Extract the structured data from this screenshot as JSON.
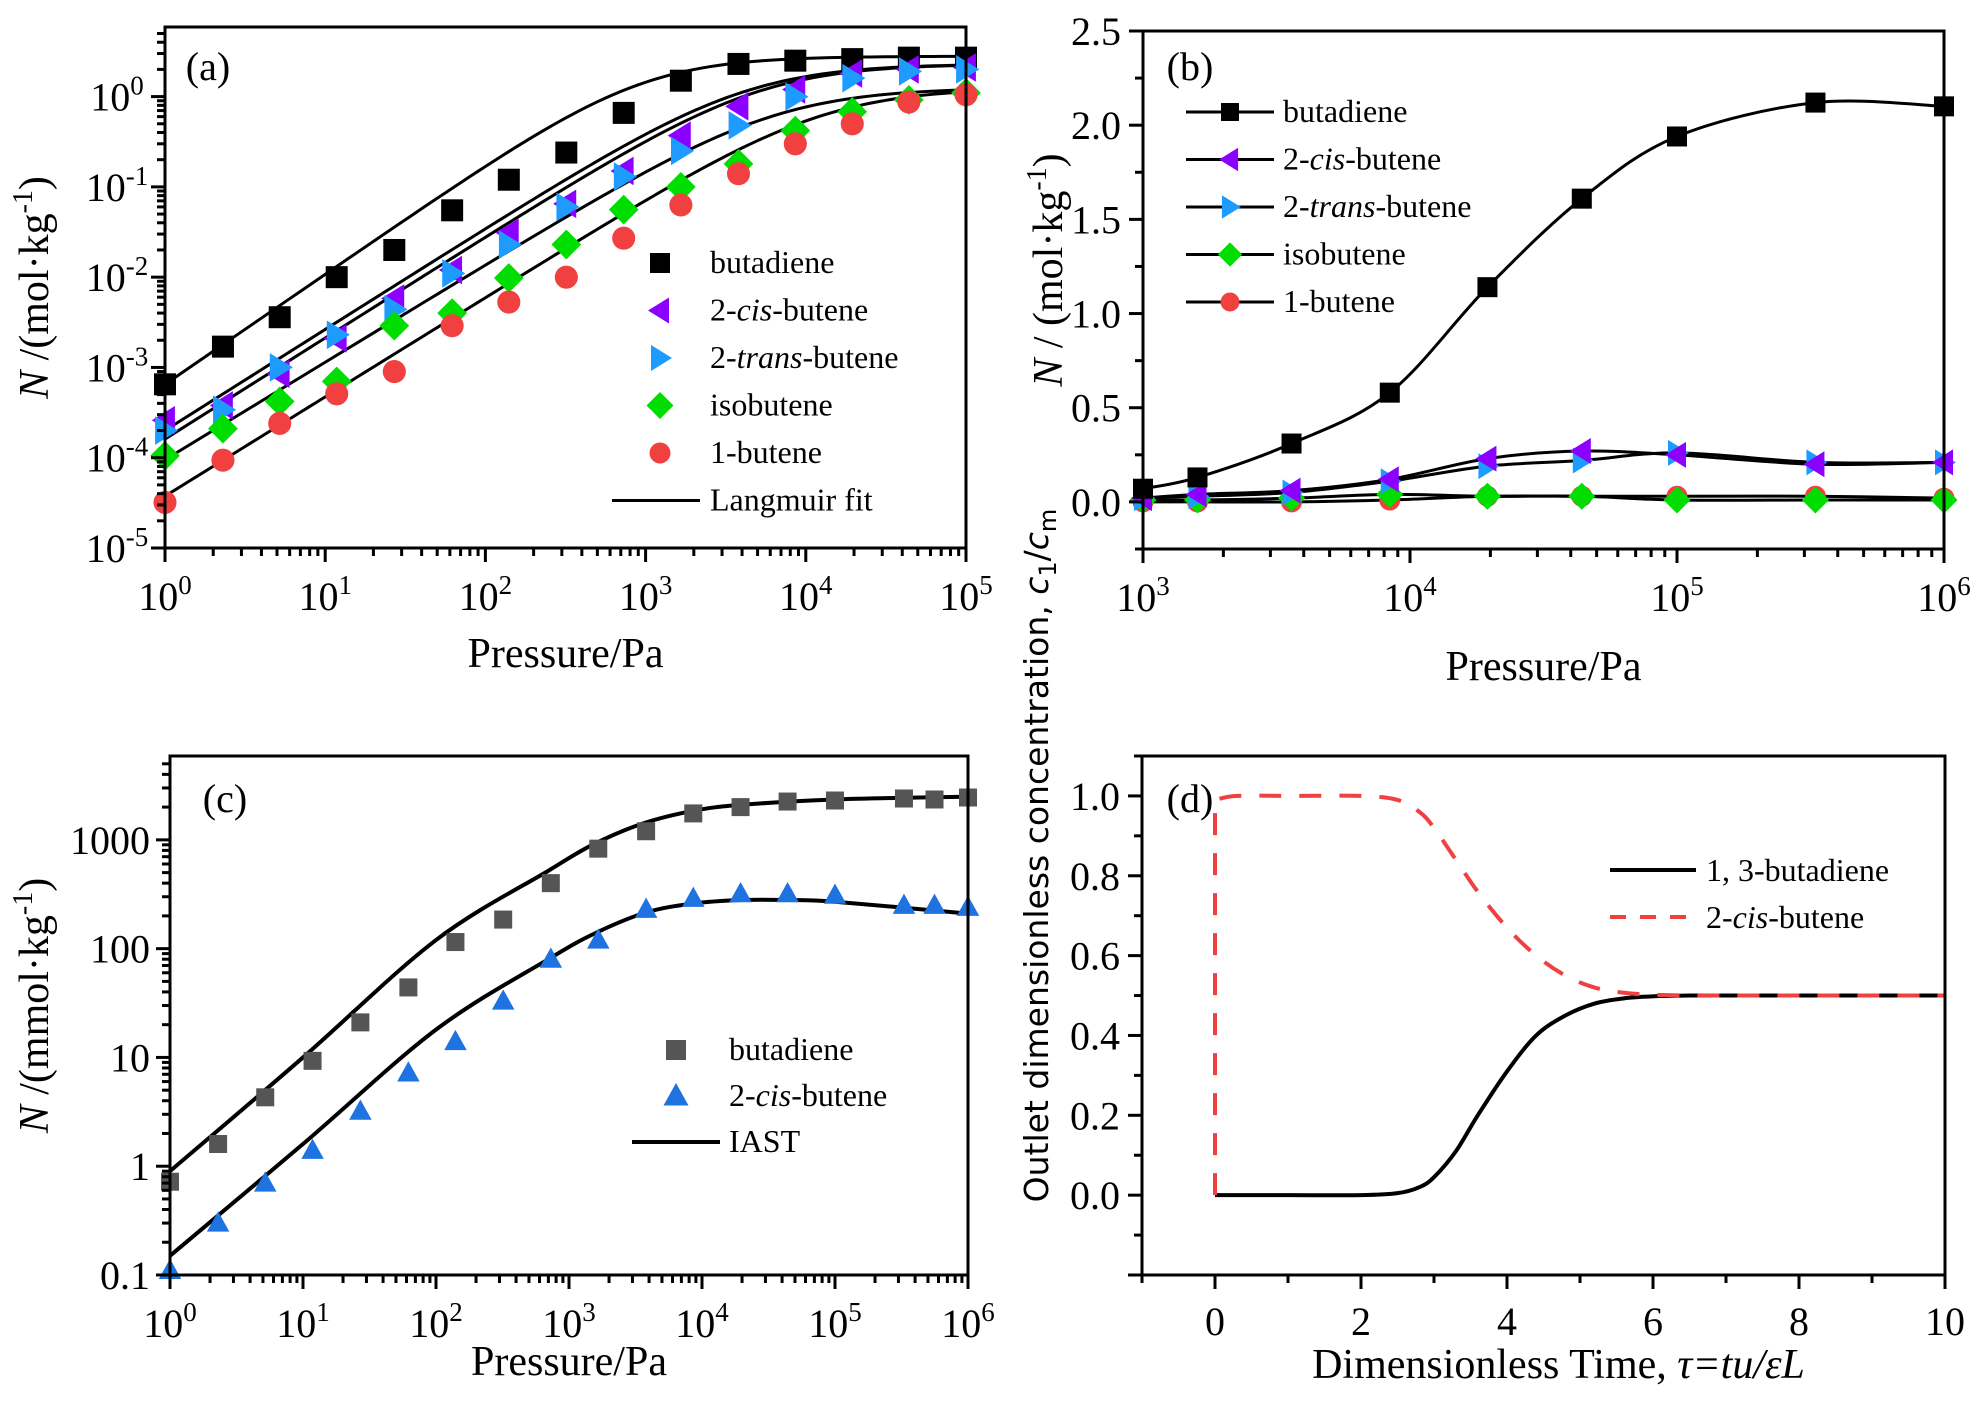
{
  "chart_data": [
    {
      "id": "a",
      "type": "scatter",
      "panel_label": "(a)",
      "title": "",
      "xlabel": "Pressure/Pa",
      "ylabel": "N /(mol·kg⁻¹)",
      "xscale": "log",
      "yscale": "log",
      "xlim": [
        1,
        100000
      ],
      "ylim": [
        1e-05,
        5.9
      ],
      "x_ticks": [
        {
          "base": "10",
          "exp": "0"
        },
        {
          "base": "10",
          "exp": "1"
        },
        {
          "base": "10",
          "exp": "2"
        },
        {
          "base": "10",
          "exp": "3"
        },
        {
          "base": "10",
          "exp": "4"
        },
        {
          "base": "10",
          "exp": "5"
        }
      ],
      "y_ticks": [
        {
          "base": "10",
          "exp": "0"
        },
        {
          "base": "10",
          "exp": "-1"
        },
        {
          "base": "10",
          "exp": "-2"
        },
        {
          "base": "10",
          "exp": "-3"
        },
        {
          "base": "10",
          "exp": "-4"
        },
        {
          "base": "10",
          "exp": "-5"
        }
      ],
      "legend_position": "center-right",
      "x": [
        1,
        2.3,
        5.2,
        11.8,
        27,
        62,
        140,
        320,
        730,
        1660,
        3800,
        8600,
        19500,
        44000,
        100000
      ],
      "series": [
        {
          "name": "butadiene",
          "marker": "square",
          "color": "#000000",
          "values": [
            0.00065,
            0.0017,
            0.0036,
            0.01,
            0.02,
            0.055,
            0.12,
            0.24,
            0.66,
            1.5,
            2.3,
            2.5,
            2.6,
            2.7,
            2.7
          ],
          "fit": {
            "qm": 2.8,
            "k": 0.000232,
            "n": 1.22
          }
        },
        {
          "name": "2-cis-butene",
          "name_parts": [
            "2-",
            "cis",
            "-butene"
          ],
          "marker": "triangle-left",
          "color": "#8B00FF",
          "values": [
            0.00026,
            0.00038,
            0.00085,
            0.0021,
            0.0058,
            0.012,
            0.031,
            0.065,
            0.15,
            0.37,
            0.78,
            1.2,
            1.8,
            2.0,
            2.1
          ],
          "fit": {
            "qm": 2.3,
            "k": 8.7e-05,
            "n": 1.12
          }
        },
        {
          "name": "2-trans-butene",
          "name_parts": [
            "2-",
            "trans",
            "-butene"
          ],
          "marker": "triangle-right",
          "color": "#1E9BFF",
          "values": [
            0.0002,
            0.00034,
            0.001,
            0.0023,
            0.0044,
            0.011,
            0.023,
            0.06,
            0.13,
            0.25,
            0.48,
            1.0,
            1.6,
            1.9,
            2.0
          ],
          "fit": {
            "qm": 2.3,
            "k": 7e-05,
            "n": 1.12
          }
        },
        {
          "name": "isobutene",
          "marker": "diamond",
          "color": "#00DD00",
          "values": [
            0.000105,
            0.00021,
            0.00042,
            0.0007,
            0.0029,
            0.004,
            0.0098,
            0.023,
            0.056,
            0.1,
            0.18,
            0.42,
            0.68,
            0.92,
            1.1
          ],
          "fit": {
            "qm": 1.25,
            "k": 7.6e-05,
            "n": 1.08
          }
        },
        {
          "name": "1-butene",
          "marker": "circle",
          "color": "#F04040",
          "values": [
            3.2e-05,
            9.4e-05,
            0.00024,
            0.00051,
            0.0009,
            0.0029,
            0.0053,
            0.01,
            0.027,
            0.063,
            0.14,
            0.3,
            0.5,
            0.87,
            1.05
          ],
          "fit": {
            "qm": 1.25,
            "k": 3e-05,
            "n": 1.1
          }
        }
      ],
      "fit_legend": "Langmuir fit"
    },
    {
      "id": "b",
      "type": "line",
      "panel_label": "(b)",
      "xlabel": "Pressure/Pa",
      "ylabel": "N / (mol·kg⁻¹)",
      "xscale": "log",
      "xlim": [
        1000,
        1000000
      ],
      "ylim": [
        -0.25,
        2.5
      ],
      "x_ticks": [
        {
          "base": "10",
          "exp": "3"
        },
        {
          "base": "10",
          "exp": "4"
        },
        {
          "base": "10",
          "exp": "5"
        },
        {
          "base": "10",
          "exp": "6"
        }
      ],
      "y_ticks": [
        "0.0",
        "0.5",
        "1.0",
        "1.5",
        "2.0",
        "2.5"
      ],
      "legend_position": "top-left",
      "x": [
        1000,
        1600,
        3600,
        8400,
        19500,
        44000,
        100000,
        330000,
        1000000
      ],
      "series": [
        {
          "name": "butadiene",
          "marker": "square",
          "color": "#000000",
          "values": [
            0.07,
            0.13,
            0.31,
            0.58,
            1.14,
            1.61,
            1.94,
            2.12,
            2.1
          ]
        },
        {
          "name": "2-cis-butene",
          "name_parts": [
            "2-",
            "cis",
            "-butene"
          ],
          "marker": "triangle-left",
          "color": "#8B00FF",
          "values": [
            0.02,
            0.04,
            0.06,
            0.12,
            0.23,
            0.27,
            0.25,
            0.2,
            0.21
          ]
        },
        {
          "name": "2-trans-butene",
          "name_parts": [
            "2-",
            "trans",
            "-butene"
          ],
          "marker": "triangle-right",
          "color": "#1E9BFF",
          "values": [
            0.02,
            0.03,
            0.05,
            0.11,
            0.19,
            0.22,
            0.26,
            0.21,
            0.21
          ]
        },
        {
          "name": "isobutene",
          "marker": "diamond",
          "color": "#00DD00",
          "values": [
            0.01,
            0.01,
            0.02,
            0.04,
            0.03,
            0.03,
            0.01,
            0.01,
            0.01
          ]
        },
        {
          "name": "1-butene",
          "marker": "circle",
          "color": "#F04040",
          "values": [
            0.0,
            0.0,
            0.0,
            0.01,
            0.03,
            0.03,
            0.03,
            0.03,
            0.02
          ]
        }
      ]
    },
    {
      "id": "c",
      "type": "scatter",
      "panel_label": "(c)",
      "xlabel": "Pressure/Pa",
      "ylabel": "N /(mmol·kg⁻¹)",
      "xscale": "log",
      "yscale": "log",
      "xlim": [
        1,
        1000000
      ],
      "ylim": [
        0.1,
        5900
      ],
      "x_ticks": [
        {
          "base": "10",
          "exp": "0"
        },
        {
          "base": "10",
          "exp": "1"
        },
        {
          "base": "10",
          "exp": "2"
        },
        {
          "base": "10",
          "exp": "3"
        },
        {
          "base": "10",
          "exp": "4"
        },
        {
          "base": "10",
          "exp": "5"
        },
        {
          "base": "10",
          "exp": "6"
        }
      ],
      "y_ticks": [
        "0.1",
        "1",
        "10",
        "100",
        "1000"
      ],
      "legend_position": "center-right",
      "x": [
        1,
        2.3,
        5.2,
        11.8,
        27,
        62,
        140,
        320,
        730,
        1660,
        3800,
        8600,
        19500,
        44000,
        100000,
        330000,
        560000,
        1000000
      ],
      "series": [
        {
          "name": "butadiene",
          "marker": "square",
          "color": "#555555",
          "values": [
            0.72,
            1.6,
            4.3,
            9.3,
            21,
            44,
            115,
            185,
            400,
            830,
            1200,
            1750,
            2000,
            2250,
            2300,
            2400,
            2350,
            2450
          ]
        },
        {
          "name": "2-cis-butene",
          "name_parts": [
            "2-",
            "cis",
            "-butene"
          ],
          "marker": "triangle-up",
          "color": "#1E73E0",
          "values": [
            0.11,
            0.3,
            0.7,
            1.4,
            3.2,
            7.2,
            14,
            33,
            80,
            120,
            230,
            290,
            320,
            320,
            310,
            250,
            250,
            240
          ]
        }
      ],
      "iast_legend": "IAST",
      "iast_curves": [
        {
          "name": "butadiene IAST",
          "x": [
            1,
            10,
            100,
            700,
            1500,
            3500,
            8600,
            20000,
            100000,
            1000000
          ],
          "values": [
            0.9,
            10,
            120,
            520,
            900,
            1400,
            1850,
            2100,
            2350,
            2500
          ]
        },
        {
          "name": "2-cis-butene IAST",
          "x": [
            1,
            10,
            100,
            700,
            1600,
            3800,
            8600,
            20000,
            44000,
            100000,
            1000000
          ],
          "values": [
            0.15,
            1.6,
            18,
            80,
            140,
            215,
            260,
            280,
            280,
            270,
            210
          ]
        }
      ]
    },
    {
      "id": "d",
      "type": "line",
      "panel_label": "(d)",
      "xlabel": "Dimensionless Time, τ=tu/εL",
      "xlabel_parts": {
        "plain": "Dimensionless Time, ",
        "italic": "τ=tu/εL"
      },
      "ylabel": "Outlet dimensionless concentration, c1/cm",
      "ylabel_parts": {
        "plain": "Outlet dimensionless concentration,",
        "var": "c",
        "sub1": "1",
        "slash": "/",
        "var2": "c",
        "sub2": "m"
      },
      "xlim": [
        -1,
        10
      ],
      "ylim": [
        -0.2,
        1.1
      ],
      "x_ticks": [
        "0",
        "2",
        "4",
        "6",
        "8",
        "10"
      ],
      "y_ticks": [
        "0.0",
        "0.2",
        "0.4",
        "0.6",
        "0.8",
        "1.0"
      ],
      "legend_position": "top-right",
      "series": [
        {
          "name": "1, 3-butadiene",
          "style": "solid",
          "color": "#000000",
          "x": [
            0,
            1,
            2,
            2.5,
            2.8,
            3.0,
            3.3,
            3.6,
            4.0,
            4.4,
            4.8,
            5.2,
            5.6,
            6.0,
            6.5,
            7,
            8,
            9,
            10
          ],
          "values": [
            0,
            0,
            0,
            0.005,
            0.02,
            0.045,
            0.11,
            0.2,
            0.31,
            0.4,
            0.45,
            0.48,
            0.493,
            0.498,
            0.5,
            0.5,
            0.5,
            0.5,
            0.5
          ]
        },
        {
          "name": "2-cis-butene",
          "name_parts": [
            "2-",
            "cis",
            "-butene"
          ],
          "style": "dashed",
          "color": "#F04040",
          "x": [
            0,
            0,
            0.3,
            1,
            2,
            2.5,
            2.8,
            3.0,
            3.3,
            3.6,
            4.0,
            4.4,
            4.8,
            5.2,
            5.6,
            6.0,
            6.5,
            7,
            8,
            9,
            10
          ],
          "values": [
            0,
            0.99,
            1.0,
            1.0,
            1.0,
            0.99,
            0.96,
            0.92,
            0.84,
            0.76,
            0.67,
            0.6,
            0.55,
            0.52,
            0.507,
            0.502,
            0.5,
            0.5,
            0.5,
            0.5,
            0.5
          ]
        }
      ]
    }
  ]
}
